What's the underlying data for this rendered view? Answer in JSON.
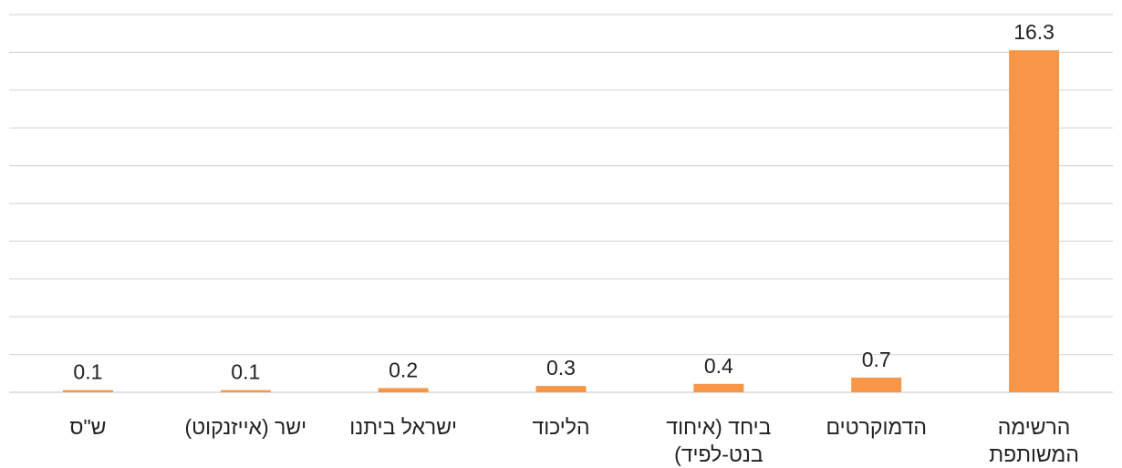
{
  "chart_data": {
    "type": "bar",
    "categories": [
      [
        "הרשימה",
        "המשותפת"
      ],
      [
        "הדמוקרטים"
      ],
      [
        "ביחד (איחוד",
        "בנט-לפיד)"
      ],
      [
        "הליכוד"
      ],
      [
        "ישראל ביתנו"
      ],
      [
        "ישר (אייזנקוט)"
      ],
      [
        "ש\"ס"
      ]
    ],
    "values": [
      16.3,
      0.7,
      0.4,
      0.3,
      0.2,
      0.1,
      0.1
    ],
    "value_labels": [
      "16.3",
      "0.7",
      "0.4",
      "0.3",
      "0.2",
      "0.1",
      "0.1"
    ],
    "ylim": [
      0,
      18
    ],
    "gridline_step": 1.8,
    "grid": true,
    "category_order": "right-to-left",
    "colors": {
      "bar": "#F79646",
      "grid": "#D9D9D9",
      "text": "#222222"
    }
  }
}
